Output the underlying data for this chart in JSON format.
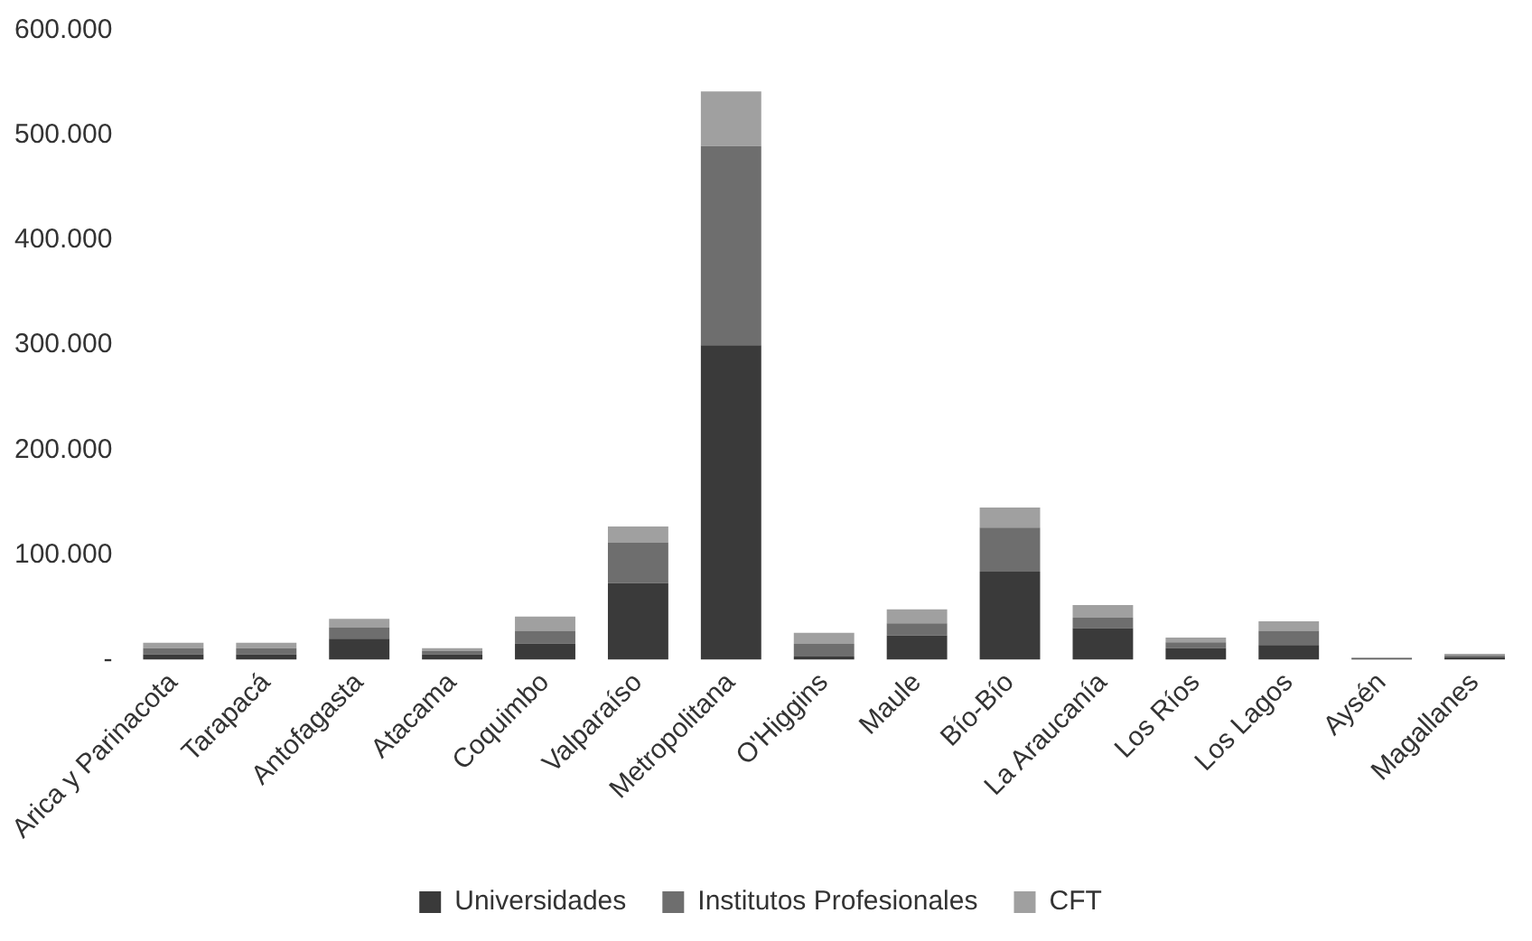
{
  "chart_data": {
    "type": "bar",
    "stacked": true,
    "categories": [
      "Arica y Parinacota",
      "Tarapacá",
      "Antofagasta",
      "Atacama",
      "Coquimbo",
      "Valparaíso",
      "Metropolitana",
      "O'Higgins",
      "Maule",
      "Bío-Bío",
      "La Araucanía",
      "Los Ríos",
      "Los Lagos",
      "Aysén",
      "Magallanes"
    ],
    "series": [
      {
        "name": "Universidades",
        "color": "#3a3a3a",
        "values": [
          5000,
          5000,
          20000,
          5000,
          15500,
          73000,
          300000,
          3000,
          23000,
          84000,
          30000,
          11000,
          14000,
          1000,
          2500
        ]
      },
      {
        "name": "Institutos Profesionales",
        "color": "#6e6e6e",
        "values": [
          6000,
          6000,
          10500,
          3000,
          12000,
          38500,
          190000,
          12000,
          11500,
          42000,
          10000,
          5500,
          13500,
          500,
          1500
        ]
      },
      {
        "name": "CFT",
        "color": "#a0a0a0",
        "values": [
          5000,
          5000,
          8500,
          3000,
          13500,
          15500,
          52000,
          10500,
          13500,
          19000,
          12000,
          4500,
          9000,
          500,
          1500
        ]
      }
    ],
    "ylim": [
      0,
      600000
    ],
    "yticks": [
      {
        "value": 0,
        "label": "-"
      },
      {
        "value": 100000,
        "label": "100.000"
      },
      {
        "value": 200000,
        "label": "200.000"
      },
      {
        "value": 300000,
        "label": "300.000"
      },
      {
        "value": 400000,
        "label": "400.000"
      },
      {
        "value": 500000,
        "label": "500.000"
      },
      {
        "value": 600000,
        "label": "600.000"
      }
    ],
    "grid": false,
    "legend": "bottom"
  }
}
